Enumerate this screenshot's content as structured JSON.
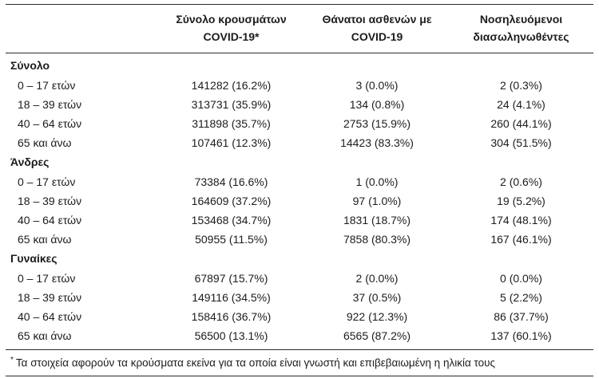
{
  "table": {
    "columns": [
      {
        "line1": "Σύνολο κρουσμάτων",
        "line2": "COVID-19*"
      },
      {
        "line1": "Θάνατοι ασθενών με",
        "line2": "COVID-19"
      },
      {
        "line1": "Νοσηλευόμενοι",
        "line2": "διασωληνωθέντες"
      }
    ],
    "sections": [
      {
        "label": "Σύνολο",
        "rows": [
          {
            "label": "0 – 17 ετών",
            "cases": "141282 (16.2%)",
            "deaths": "3 (0.0%)",
            "intubated": "2 (0.3%)"
          },
          {
            "label": "18 – 39 ετών",
            "cases": "313731 (35.9%)",
            "deaths": "134 (0.8%)",
            "intubated": "24 (4.1%)"
          },
          {
            "label": "40 – 64 ετών",
            "cases": "311898 (35.7%)",
            "deaths": "2753 (15.9%)",
            "intubated": "260 (44.1%)"
          },
          {
            "label": "65 και άνω",
            "cases": "107461 (12.3%)",
            "deaths": "14423 (83.3%)",
            "intubated": "304 (51.5%)"
          }
        ]
      },
      {
        "label": "Άνδρες",
        "rows": [
          {
            "label": "0 – 17 ετών",
            "cases": "73384 (16.6%)",
            "deaths": "1 (0.0%)",
            "intubated": "2 (0.6%)"
          },
          {
            "label": "18 – 39 ετών",
            "cases": "164609 (37.2%)",
            "deaths": "97 (1.0%)",
            "intubated": "19 (5.2%)"
          },
          {
            "label": "40 – 64 ετών",
            "cases": "153468 (34.7%)",
            "deaths": "1831 (18.7%)",
            "intubated": "174 (48.1%)"
          },
          {
            "label": "65 και άνω",
            "cases": "50955 (11.5%)",
            "deaths": "7858 (80.3%)",
            "intubated": "167 (46.1%)"
          }
        ]
      },
      {
        "label": "Γυναίκες",
        "rows": [
          {
            "label": "0 – 17 ετών",
            "cases": "67897 (15.7%)",
            "deaths": "2 (0.0%)",
            "intubated": "0 (0.0%)"
          },
          {
            "label": "18 – 39 ετών",
            "cases": "149116 (34.5%)",
            "deaths": "37 (0.5%)",
            "intubated": "5 (2.2%)"
          },
          {
            "label": "40 – 64 ετών",
            "cases": "158416 (36.7%)",
            "deaths": "922 (12.3%)",
            "intubated": "86 (37.7%)"
          },
          {
            "label": "65 και άνω",
            "cases": "56500 (13.1%)",
            "deaths": "6565 (87.2%)",
            "intubated": "137 (60.1%)"
          }
        ]
      }
    ],
    "footnote_marker": "*",
    "footnote": "Τα στοιχεία αφορούν τα κρούσματα εκείνα για τα οποία είναι γνωστή και επιβεβαιωμένη η ηλικία τους"
  }
}
